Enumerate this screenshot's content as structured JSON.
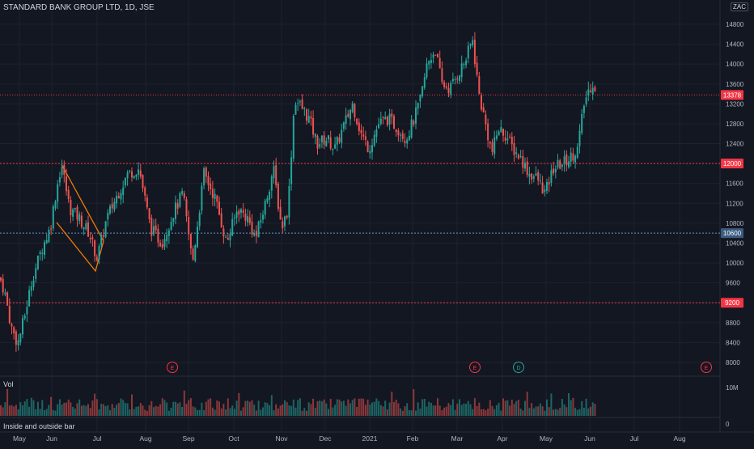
{
  "header": {
    "symbol": "STANDARD BANK GROUP LTD, 1D, JSE",
    "currency": "ZAC"
  },
  "indicator": "Inside and outside bar",
  "volume_label": "Vol",
  "colors": {
    "up": "#26a69a",
    "down": "#ef5350",
    "grid": "#1e222d",
    "text": "#b2b5be",
    "hline": "#f23645",
    "dotline": "#5d9bd1",
    "price_tag": "#f23645",
    "blue_tag": "#3c5a80"
  },
  "chart_data": {
    "type": "candlestick",
    "x_ticks": [
      "May",
      "Jun",
      "Jul",
      "Aug",
      "Sep",
      "Oct",
      "Nov",
      "Dec",
      "2021",
      "Feb",
      "Mar",
      "Apr",
      "May",
      "Jun",
      "Jul",
      "Aug"
    ],
    "y_ticks": [
      8000,
      8400,
      8800,
      9200,
      9600,
      10000,
      10400,
      10800,
      11200,
      11600,
      12000,
      12400,
      12800,
      13200,
      13600,
      14000,
      14400,
      14800
    ],
    "ylim": [
      7800,
      15100
    ],
    "vol_ticks": [
      "10M",
      "0"
    ],
    "last_price": "13378",
    "horizontal_levels": [
      {
        "label": "12000",
        "value": 12000,
        "style": "dotted-red"
      },
      {
        "label": "9200",
        "value": 9200,
        "style": "dotted-red"
      },
      {
        "label": "10600",
        "value": 10600,
        "style": "dotted-blue"
      }
    ],
    "events": [
      "E",
      "E",
      "D",
      "E"
    ],
    "key_points": [
      {
        "date": "May",
        "close": 9700
      },
      {
        "date": "late May",
        "low": 8380
      },
      {
        "date": "early Jun",
        "high": 12000
      },
      {
        "date": "early Jul",
        "close": 10100
      },
      {
        "date": "early Aug",
        "high": 11900
      },
      {
        "date": "mid Sep",
        "low": 9950
      },
      {
        "date": "mid Oct",
        "low": 10400
      },
      {
        "date": "early Nov",
        "high": 13650
      },
      {
        "date": "Dec",
        "close": 12800
      },
      {
        "date": "mid Feb",
        "high": 14400
      },
      {
        "date": "early Mar",
        "high": 14500
      },
      {
        "date": "late Mar",
        "low": 12100
      },
      {
        "date": "early May",
        "low": 11400
      },
      {
        "date": "early Jun",
        "high": 13700
      },
      {
        "date": "early Jun",
        "close": 13378
      }
    ]
  }
}
